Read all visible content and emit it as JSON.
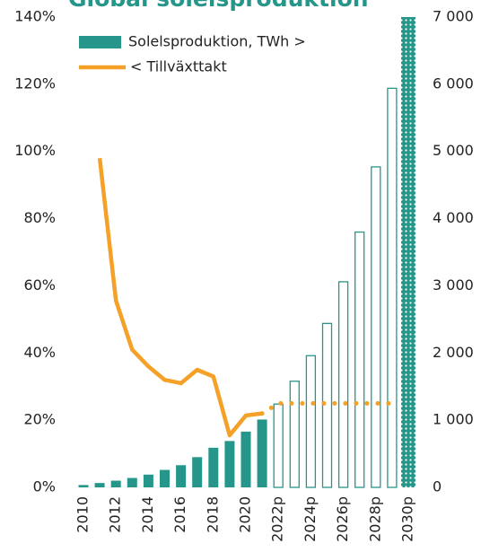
{
  "chart_data": {
    "type": "combo",
    "title": "Global solelsproduktion",
    "categories": [
      "2010",
      null,
      "2012",
      null,
      "2014",
      null,
      "2016",
      null,
      "2018",
      null,
      "2020",
      null,
      "2022p",
      null,
      "2024p",
      null,
      "2026p",
      null,
      "2028p",
      null,
      "2030p"
    ],
    "series": [
      {
        "name": "Solelsproduktion, TWh >",
        "type": "bar",
        "axis": "y2",
        "color": "#26968a",
        "values": [
          35,
          65,
          100,
          140,
          190,
          260,
          330,
          450,
          590,
          690,
          830,
          1010,
          1240,
          1580,
          1960,
          2440,
          3060,
          3800,
          4770,
          5940,
          7000
        ]
      },
      {
        "name": "< Tillväxttakt",
        "type": "line",
        "axis": "y",
        "color": "#f5a027",
        "values": [
          null,
          98,
          55.6,
          41,
          36,
          32,
          31,
          35,
          33,
          15.5,
          21.4,
          22,
          25,
          25,
          25,
          25,
          25,
          25,
          25,
          25,
          null
        ]
      }
    ],
    "forecast_start": 12,
    "last_bar_pattern": "dotted",
    "ylim": [
      0,
      140
    ],
    "yticks": [
      {
        "value": 0,
        "label": "0%"
      },
      {
        "value": 20,
        "label": "20%"
      },
      {
        "value": 40,
        "label": "40%"
      },
      {
        "value": 60,
        "label": "60%"
      },
      {
        "value": 80,
        "label": "80%"
      },
      {
        "value": 100,
        "label": "100%"
      },
      {
        "value": 120,
        "label": "120%"
      },
      {
        "value": 140,
        "label": "140%"
      }
    ],
    "y2lim": [
      0,
      7000
    ],
    "y2ticks": [
      0,
      {
        "value": 1000,
        "label": "1 000"
      },
      {
        "value": 2000,
        "label": "2 000"
      },
      {
        "value": 3000,
        "label": "3 000"
      },
      {
        "value": 4000,
        "label": "4 000"
      },
      {
        "value": 5000,
        "label": "5 000"
      },
      {
        "value": 6000,
        "label": "6 000"
      },
      {
        "value": 7000,
        "label": "7 000"
      }
    ]
  }
}
